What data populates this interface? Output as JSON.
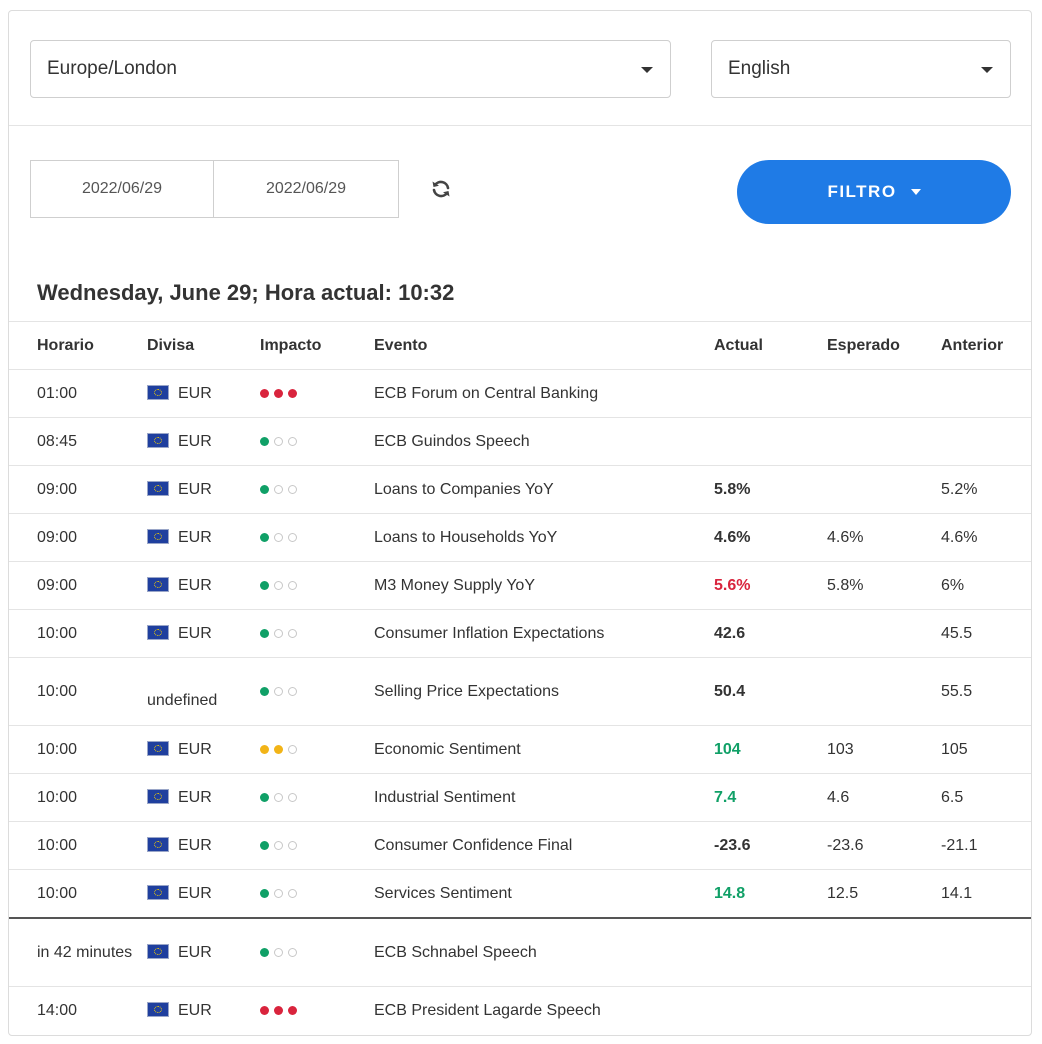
{
  "timezone_select": {
    "value": "Europe/London"
  },
  "language_select": {
    "value": "English"
  },
  "date_range": {
    "from": "2022/06/29",
    "to": "2022/06/29"
  },
  "filter_button": {
    "label": "FILTRO"
  },
  "day_title": "Wednesday, June 29; Hora actual: 10:32",
  "colors": {
    "accent": "#1f7be6",
    "positive": "#10a067",
    "negative": "#d9243d",
    "medium_impact": "#f2b417"
  },
  "table": {
    "headers": [
      "Horario",
      "Divisa",
      "Impacto",
      "Evento",
      "Actual",
      "Esperado",
      "Anterior"
    ],
    "rows": [
      {
        "time": "01:00",
        "currency": "EUR",
        "impact": 3,
        "event": "ECB Forum on Central Banking",
        "actual": "",
        "actual_style": "",
        "forecast": "",
        "previous": ""
      },
      {
        "time": "08:45",
        "currency": "EUR",
        "impact": 1,
        "event": "ECB Guindos Speech",
        "actual": "",
        "actual_style": "",
        "forecast": "",
        "previous": ""
      },
      {
        "time": "09:00",
        "currency": "EUR",
        "impact": 1,
        "event": "Loans to Companies YoY",
        "actual": "5.8%",
        "actual_style": "bold",
        "forecast": "",
        "previous": "5.2%"
      },
      {
        "time": "09:00",
        "currency": "EUR",
        "impact": 1,
        "event": "Loans to Households YoY",
        "actual": "4.6%",
        "actual_style": "bold",
        "forecast": "4.6%",
        "previous": "4.6%"
      },
      {
        "time": "09:00",
        "currency": "EUR",
        "impact": 1,
        "event": "M3 Money Supply YoY",
        "actual": "5.6%",
        "actual_style": "red",
        "forecast": "5.8%",
        "previous": "6%"
      },
      {
        "time": "10:00",
        "currency": "EUR",
        "impact": 1,
        "event": "Consumer Inflation Expectations",
        "actual": "42.6",
        "actual_style": "bold",
        "forecast": "",
        "previous": "45.5"
      },
      {
        "time": "10:00",
        "currency": "undefined",
        "impact": 1,
        "event": "Selling Price Expectations",
        "actual": "50.4",
        "actual_style": "bold",
        "forecast": "",
        "previous": "55.5"
      },
      {
        "time": "10:00",
        "currency": "EUR",
        "impact": 2,
        "event": "Economic Sentiment",
        "actual": "104",
        "actual_style": "green",
        "forecast": "103",
        "previous": "105"
      },
      {
        "time": "10:00",
        "currency": "EUR",
        "impact": 1,
        "event": "Industrial Sentiment",
        "actual": "7.4",
        "actual_style": "green",
        "forecast": "4.6",
        "previous": "6.5"
      },
      {
        "time": "10:00",
        "currency": "EUR",
        "impact": 1,
        "event": "Consumer Confidence Final",
        "actual": "-23.6",
        "actual_style": "bold",
        "forecast": "-23.6",
        "previous": "-21.1"
      },
      {
        "time": "10:00",
        "currency": "EUR",
        "impact": 1,
        "event": "Services Sentiment",
        "actual": "14.8",
        "actual_style": "green",
        "forecast": "12.5",
        "previous": "14.1"
      },
      {
        "time": "in 42 minutes",
        "currency": "EUR",
        "impact": 1,
        "event": "ECB Schnabel Speech",
        "actual": "",
        "actual_style": "",
        "forecast": "",
        "previous": ""
      },
      {
        "time": "14:00",
        "currency": "EUR",
        "impact": 3,
        "event": "ECB President Lagarde Speech",
        "actual": "",
        "actual_style": "",
        "forecast": "",
        "previous": ""
      }
    ]
  }
}
